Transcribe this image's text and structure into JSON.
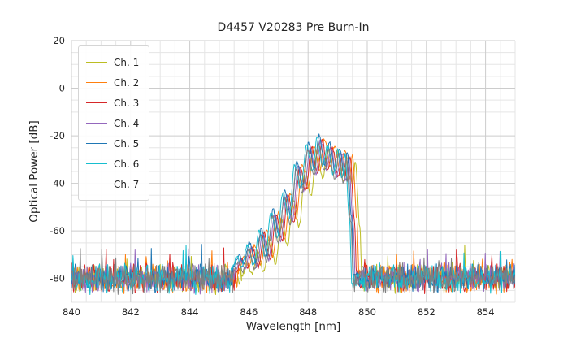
{
  "figure": {
    "title": "D4457 V20283 Pre Burn-In",
    "xlabel": "Wavelength [nm]",
    "ylabel": "Optical Power [dB]"
  },
  "chart_data": {
    "type": "line",
    "title": "D4457 V20283 Pre Burn-In",
    "xlabel": "Wavelength [nm]",
    "ylabel": "Optical Power [dB]",
    "xlim": [
      840,
      855
    ],
    "ylim": [
      -90,
      20
    ],
    "xticks": [
      840,
      842,
      844,
      846,
      848,
      850,
      852,
      854
    ],
    "yticks": [
      20,
      0,
      -20,
      -40,
      -60,
      -80
    ],
    "x_minor_step_nm": 0.5,
    "y_minor_step_db": 5,
    "grid": true,
    "legend_position": "upper left",
    "description": "Optical spectra of 7 laser channels; flat noise floor near -80 dB with a multi-lobed emission peak between ~846 and ~849.7 nm reaching about -20 dB near 848.3 nm, then a sharp cutoff back to the noise floor.",
    "noise_floor": {
      "mean_db": -80,
      "amplitude_db": 7,
      "sample_step_nm": 0.025
    },
    "envelope_template": [
      [
        845.55,
        -76
      ],
      [
        845.75,
        -71
      ],
      [
        845.9,
        -75
      ],
      [
        846.1,
        -66
      ],
      [
        846.3,
        -74
      ],
      [
        846.5,
        -60
      ],
      [
        846.7,
        -71
      ],
      [
        846.9,
        -52
      ],
      [
        847.1,
        -63
      ],
      [
        847.3,
        -44
      ],
      [
        847.5,
        -55
      ],
      [
        847.7,
        -32
      ],
      [
        847.9,
        -42
      ],
      [
        848.1,
        -24
      ],
      [
        848.3,
        -35
      ],
      [
        848.45,
        -21
      ],
      [
        848.65,
        -33
      ],
      [
        848.8,
        -24
      ],
      [
        849.0,
        -36
      ],
      [
        849.15,
        -26
      ],
      [
        849.3,
        -38
      ],
      [
        849.4,
        -28
      ],
      [
        849.55,
        -55
      ],
      [
        849.62,
        -77
      ]
    ],
    "series": [
      {
        "name": "Ch. 1",
        "color": "#bcbd22",
        "shift_nm": 0.2,
        "level_offset_db": -3,
        "seed": 101
      },
      {
        "name": "Ch. 2",
        "color": "#ff7f0e",
        "shift_nm": 0.1,
        "level_offset_db": 0,
        "seed": 102
      },
      {
        "name": "Ch. 3",
        "color": "#d62728",
        "shift_nm": 0.02,
        "level_offset_db": -1,
        "seed": 103
      },
      {
        "name": "Ch. 4",
        "color": "#9467bd",
        "shift_nm": -0.03,
        "level_offset_db": -1,
        "seed": 104
      },
      {
        "name": "Ch. 5",
        "color": "#1f77b4",
        "shift_nm": -0.08,
        "level_offset_db": 1,
        "seed": 105
      },
      {
        "name": "Ch. 6",
        "color": "#17becf",
        "shift_nm": -0.15,
        "level_offset_db": 0,
        "seed": 106
      },
      {
        "name": "Ch. 7",
        "color": "#7f7f7f",
        "shift_nm": -0.1,
        "level_offset_db": -2,
        "seed": 107
      }
    ],
    "style": {
      "grid_major_color": "#cccccc",
      "grid_minor_color": "#e5e5e5",
      "tick_label_color": "#262626",
      "line_width": 1.0
    }
  }
}
